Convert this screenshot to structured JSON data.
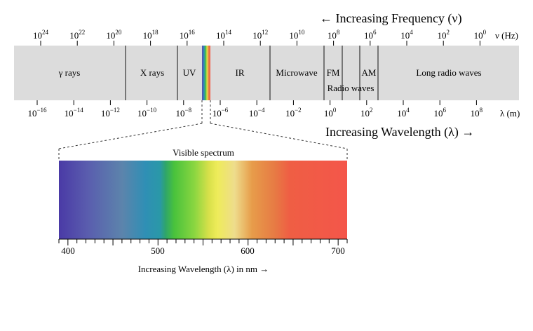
{
  "frequency_title": "← Increasing Frequency (ν)",
  "frequency_unit": "ν (Hz)",
  "frequency_ticks": [
    {
      "base": "10",
      "exp": "24"
    },
    {
      "base": "10",
      "exp": "22"
    },
    {
      "base": "10",
      "exp": "20"
    },
    {
      "base": "10",
      "exp": "18"
    },
    {
      "base": "10",
      "exp": "16"
    },
    {
      "base": "10",
      "exp": "14"
    },
    {
      "base": "10",
      "exp": "12"
    },
    {
      "base": "10",
      "exp": "10"
    },
    {
      "base": "10",
      "exp": "8"
    },
    {
      "base": "10",
      "exp": "6"
    },
    {
      "base": "10",
      "exp": "4"
    },
    {
      "base": "10",
      "exp": "2"
    },
    {
      "base": "10",
      "exp": "0"
    }
  ],
  "wavelength_unit": "λ (m)",
  "wavelength_ticks": [
    {
      "base": "10",
      "exp": "−16"
    },
    {
      "base": "10",
      "exp": "−14"
    },
    {
      "base": "10",
      "exp": "−12"
    },
    {
      "base": "10",
      "exp": "−10"
    },
    {
      "base": "10",
      "exp": "−8"
    },
    {
      "base": "10",
      "exp": "−6"
    },
    {
      "base": "10",
      "exp": "−4"
    },
    {
      "base": "10",
      "exp": "−2"
    },
    {
      "base": "10",
      "exp": "0"
    },
    {
      "base": "10",
      "exp": "2"
    },
    {
      "base": "10",
      "exp": "4"
    },
    {
      "base": "10",
      "exp": "6"
    },
    {
      "base": "10",
      "exp": "8"
    }
  ],
  "wavelength_title": "Increasing Wavelength (λ) →",
  "bands": {
    "gamma": "γ rays",
    "xray": "X rays",
    "uv": "UV",
    "ir": "IR",
    "microwave": "Microwave",
    "fm": "FM",
    "am": "AM",
    "radio": "Radio waves",
    "long_radio": "Long radio waves"
  },
  "visible": {
    "title": "Visible spectrum",
    "ticks": [
      "400",
      "500",
      "600",
      "700"
    ],
    "axis_label": "Increasing Wavelength (λ) in nm →"
  },
  "colors": {
    "band_fill": "#dcdcdc",
    "divider": "#333333",
    "text": "#000000"
  }
}
